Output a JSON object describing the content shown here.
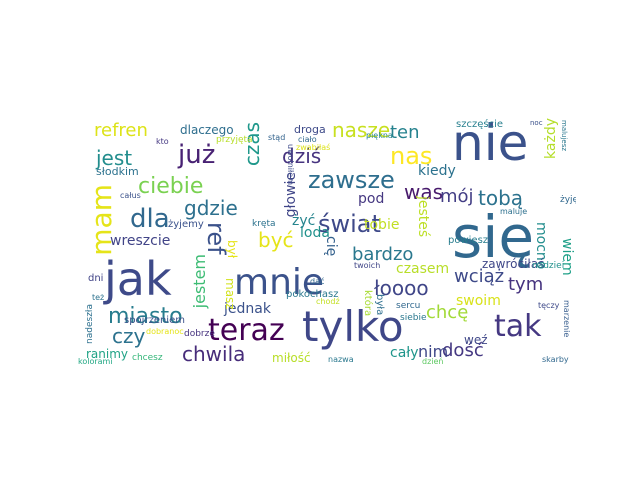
{
  "words": [
    {
      "text": "się",
      "color": "#31688e"
    },
    {
      "text": "nie",
      "color": "#3b528b"
    },
    {
      "text": "jak",
      "color": "#3e4a89"
    },
    {
      "text": "tylko",
      "color": "#3f4788"
    },
    {
      "text": "mnie",
      "color": "#3b528b"
    },
    {
      "text": "tak",
      "color": "#453882"
    },
    {
      "text": "teraz",
      "color": "#440154"
    },
    {
      "text": "mam",
      "color": "#e5e419"
    },
    {
      "text": "już",
      "color": "#482173"
    },
    {
      "text": "dla",
      "color": "#31688e"
    },
    {
      "text": "zawsze",
      "color": "#2e6e8e"
    },
    {
      "text": "ciebie",
      "color": "#7ad151"
    },
    {
      "text": "świat",
      "color": "#3e4989"
    },
    {
      "text": "nas",
      "color": "#fde725"
    },
    {
      "text": "gdzie",
      "color": "#2d708e"
    },
    {
      "text": "ref",
      "color": "#3b528b"
    },
    {
      "text": "miasto",
      "color": "#287d8e"
    },
    {
      "text": "chwila",
      "color": "#472c7a"
    },
    {
      "text": "dziś",
      "color": "#46337f"
    },
    {
      "text": "jest",
      "color": "#228d8d"
    },
    {
      "text": "refren",
      "color": "#dde318"
    },
    {
      "text": "nasze",
      "color": "#c8e020"
    },
    {
      "text": "ten",
      "color": "#26828e"
    },
    {
      "text": "tobą",
      "color": "#2c728e"
    },
    {
      "text": "był",
      "color": "#e5e419"
    },
    {
      "text": "czas",
      "color": "#1f988b"
    },
    {
      "text": "być",
      "color": "#e5e419"
    },
    {
      "text": "bardzo",
      "color": "#2a788e"
    },
    {
      "text": "was",
      "color": "#481a6c"
    },
    {
      "text": "mój",
      "color": "#433e85"
    },
    {
      "text": "łoooo",
      "color": "#404688"
    },
    {
      "text": "czy",
      "color": "#2c728e"
    },
    {
      "text": "jestem",
      "color": "#3dbc74"
    },
    {
      "text": "chcę",
      "color": "#a2da37"
    },
    {
      "text": "dość",
      "color": "#453882"
    },
    {
      "text": "wciąż",
      "color": "#3e4a89"
    },
    {
      "text": "tym",
      "color": "#46337f"
    },
    {
      "text": "każdy",
      "color": "#b5de2b"
    },
    {
      "text": "kiedy",
      "color": "#2c728e"
    },
    {
      "text": "tobie",
      "color": "#c2df23"
    },
    {
      "text": "jesteś",
      "color": "#bddf26"
    },
    {
      "text": "wreszcie",
      "color": "#414487"
    },
    {
      "text": "jednak",
      "color": "#3b528b"
    },
    {
      "text": "głowie",
      "color": "#404688"
    },
    {
      "text": "loda",
      "color": "#21918c"
    },
    {
      "text": "nim",
      "color": "#3f4788"
    },
    {
      "text": "cały",
      "color": "#1f958b"
    },
    {
      "text": "swoim",
      "color": "#d8e219"
    },
    {
      "text": "mocno",
      "color": "#228d8d"
    },
    {
      "text": "wiem",
      "color": "#1fa088"
    },
    {
      "text": "pod",
      "color": "#453781"
    },
    {
      "text": "żyć",
      "color": "#25848e"
    },
    {
      "text": "cię",
      "color": "#34618d"
    },
    {
      "text": "czasem",
      "color": "#b8de29"
    },
    {
      "text": "zawróciłaś",
      "color": "#3f4788"
    },
    {
      "text": "dlaczego",
      "color": "#2e6e8e"
    },
    {
      "text": "miłość",
      "color": "#b8de29"
    },
    {
      "text": "ranimy",
      "color": "#20a386"
    },
    {
      "text": "weź",
      "color": "#3f4788"
    },
    {
      "text": "masz",
      "color": "#d2e21b"
    },
    {
      "text": "słodkim",
      "color": "#2c728e"
    },
    {
      "text": "powiesz",
      "color": "#287d8e"
    },
    {
      "text": "żyjemy",
      "color": "#3b528b"
    },
    {
      "text": "dni",
      "color": "#414487"
    },
    {
      "text": "spojrzeniem",
      "color": "#3b528b"
    },
    {
      "text": "pokochasz",
      "color": "#2a788e"
    },
    {
      "text": "nadziei",
      "color": "#21918c"
    },
    {
      "text": "która",
      "color": "#a8db34"
    },
    {
      "text": "była",
      "color": "#2e6e8e"
    },
    {
      "text": "sercu",
      "color": "#31688e"
    },
    {
      "text": "siebie",
      "color": "#2a788e"
    },
    {
      "text": "twoich",
      "color": "#404688"
    },
    {
      "text": "dać",
      "color": "#31688e"
    },
    {
      "text": "kręta",
      "color": "#2c728e"
    },
    {
      "text": "droga",
      "color": "#3e4a89"
    },
    {
      "text": "ciało",
      "color": "#31688e"
    },
    {
      "text": "zwabiłaś",
      "color": "#dde318"
    },
    {
      "text": "piękna",
      "color": "#25848e"
    },
    {
      "text": "szczęście",
      "color": "#277f8e"
    },
    {
      "text": "stąd",
      "color": "#33638d"
    },
    {
      "text": "uwolniłem",
      "color": "#3e4a89"
    },
    {
      "text": "maluje",
      "color": "#2d708e"
    },
    {
      "text": "kto",
      "color": "#453882"
    },
    {
      "text": "przyjęta",
      "color": "#b8de29"
    },
    {
      "text": "całus",
      "color": "#3b528b"
    },
    {
      "text": "też",
      "color": "#2c728e"
    },
    {
      "text": "nadeszła",
      "color": "#2d708e"
    },
    {
      "text": "dobranoc",
      "color": "#e5e419"
    },
    {
      "text": "kolorami",
      "color": "#22a884"
    },
    {
      "text": "dobrze",
      "color": "#46337f"
    },
    {
      "text": "chcesz",
      "color": "#34b679"
    },
    {
      "text": "nazwa",
      "color": "#2a788e"
    },
    {
      "text": "dzień",
      "color": "#5ec962"
    },
    {
      "text": "skarby",
      "color": "#31688e"
    },
    {
      "text": "tęczy",
      "color": "#3e4a89"
    },
    {
      "text": "marzenie",
      "color": "#365c8d"
    },
    {
      "text": "żyję",
      "color": "#31688e"
    },
    {
      "text": "noc",
      "color": "#3b528b"
    },
    {
      "text": "malujesz",
      "color": "#2a788e"
    },
    {
      "text": "chodź",
      "color": "#c2df23"
    }
  ]
}
